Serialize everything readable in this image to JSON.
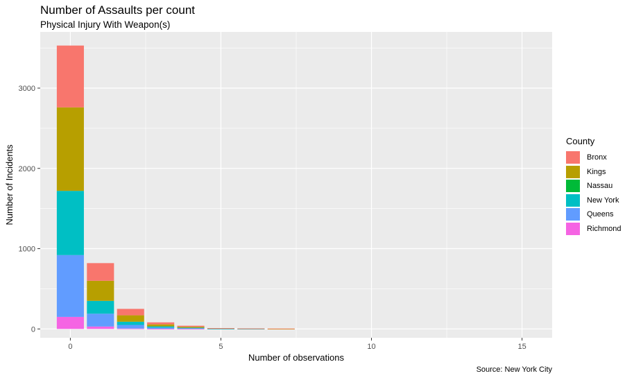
{
  "chart_data": {
    "type": "bar",
    "stacked": true,
    "title": "Number of Assaults per count",
    "subtitle": "Physical Injury With Weapon(s)",
    "caption": "Source: New York City",
    "xlabel": "Number of observations",
    "ylabel": "Number of Incidents",
    "xlim": [
      -1,
      16
    ],
    "ylim": [
      -110,
      3700
    ],
    "xticks": [
      0,
      5,
      10,
      15
    ],
    "yticks": [
      0,
      1000,
      2000,
      3000
    ],
    "grid": true,
    "legend": {
      "title": "County",
      "position": "right"
    },
    "x": [
      0,
      1,
      2,
      3,
      4,
      5,
      6,
      7
    ],
    "series": [
      {
        "name": "Richmond",
        "color": "#F564E3",
        "values": [
          150,
          30,
          5,
          2,
          1,
          0,
          0,
          0
        ]
      },
      {
        "name": "Queens",
        "color": "#619CFF",
        "values": [
          770,
          160,
          45,
          15,
          8,
          2,
          1,
          0
        ]
      },
      {
        "name": "New York",
        "color": "#00BFC4",
        "values": [
          800,
          160,
          40,
          15,
          6,
          2,
          1,
          0
        ]
      },
      {
        "name": "Nassau",
        "color": "#00BA38",
        "values": [
          0,
          0,
          0,
          0,
          0,
          0,
          0,
          0
        ]
      },
      {
        "name": "Kings",
        "color": "#B79F00",
        "values": [
          1040,
          250,
          80,
          25,
          12,
          4,
          3,
          1
        ]
      },
      {
        "name": "Bronx",
        "color": "#F8766D",
        "values": [
          770,
          220,
          80,
          25,
          13,
          2,
          1,
          4
        ]
      }
    ],
    "legend_order": [
      "Bronx",
      "Kings",
      "Nassau",
      "New York",
      "Queens",
      "Richmond"
    ]
  }
}
